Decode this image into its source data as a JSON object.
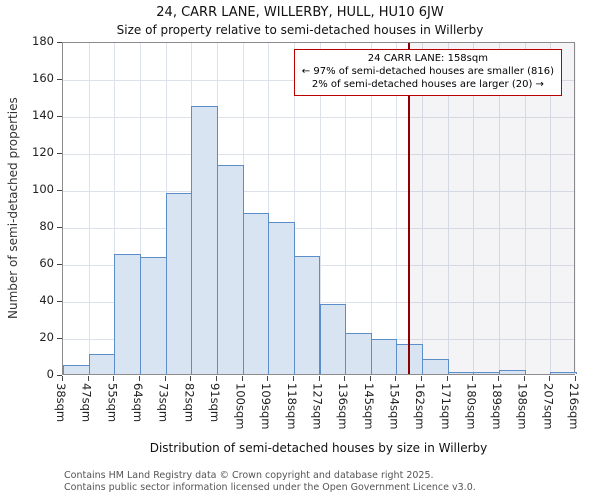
{
  "title": "24, CARR LANE, WILLERBY, HULL, HU10 6JW",
  "subtitle": "Size of property relative to semi-detached houses in Willerby",
  "chart_data": {
    "type": "bar",
    "title": "24, CARR LANE, WILLERBY, HULL, HU10 6JW — Size of property relative to semi-detached houses in Willerby",
    "xlabel": "Distribution of semi-detached houses by size in Willerby",
    "ylabel": "Number of semi-detached properties",
    "ylim": [
      0,
      180
    ],
    "yticks": [
      0,
      20,
      40,
      60,
      80,
      100,
      120,
      140,
      160,
      180
    ],
    "bin_edges": [
      38,
      47,
      55,
      64,
      73,
      82,
      91,
      100,
      109,
      118,
      127,
      136,
      145,
      154,
      162,
      171,
      180,
      189,
      198,
      207,
      216
    ],
    "categories": [
      "38sqm",
      "47sqm",
      "55sqm",
      "64sqm",
      "73sqm",
      "82sqm",
      "91sqm",
      "100sqm",
      "109sqm",
      "118sqm",
      "127sqm",
      "136sqm",
      "145sqm",
      "154sqm",
      "162sqm",
      "171sqm",
      "180sqm",
      "189sqm",
      "198sqm",
      "207sqm",
      "216sqm"
    ],
    "values": [
      5,
      11,
      65,
      63,
      98,
      145,
      113,
      87,
      82,
      64,
      38,
      22,
      19,
      16,
      8,
      1,
      1,
      2,
      0,
      1
    ],
    "grid": true,
    "legend": false,
    "marker": {
      "value": 158
    },
    "annotation": {
      "line1": "24 CARR LANE: 158sqm",
      "line2": "← 97% of semi-detached houses are smaller (816)",
      "line3": "2% of semi-detached houses are larger (20) →"
    },
    "colors": {
      "bar_fill": "#d9e4f3",
      "bar_border": "#5b8dc8",
      "marker_line": "#8b0000",
      "annotation_border": "#bb0000",
      "grid": "#dde2ea"
    }
  },
  "footer": {
    "line1": "Contains HM Land Registry data © Crown copyright and database right 2025.",
    "line2": "Contains public sector information licensed under the Open Government Licence v3.0."
  }
}
